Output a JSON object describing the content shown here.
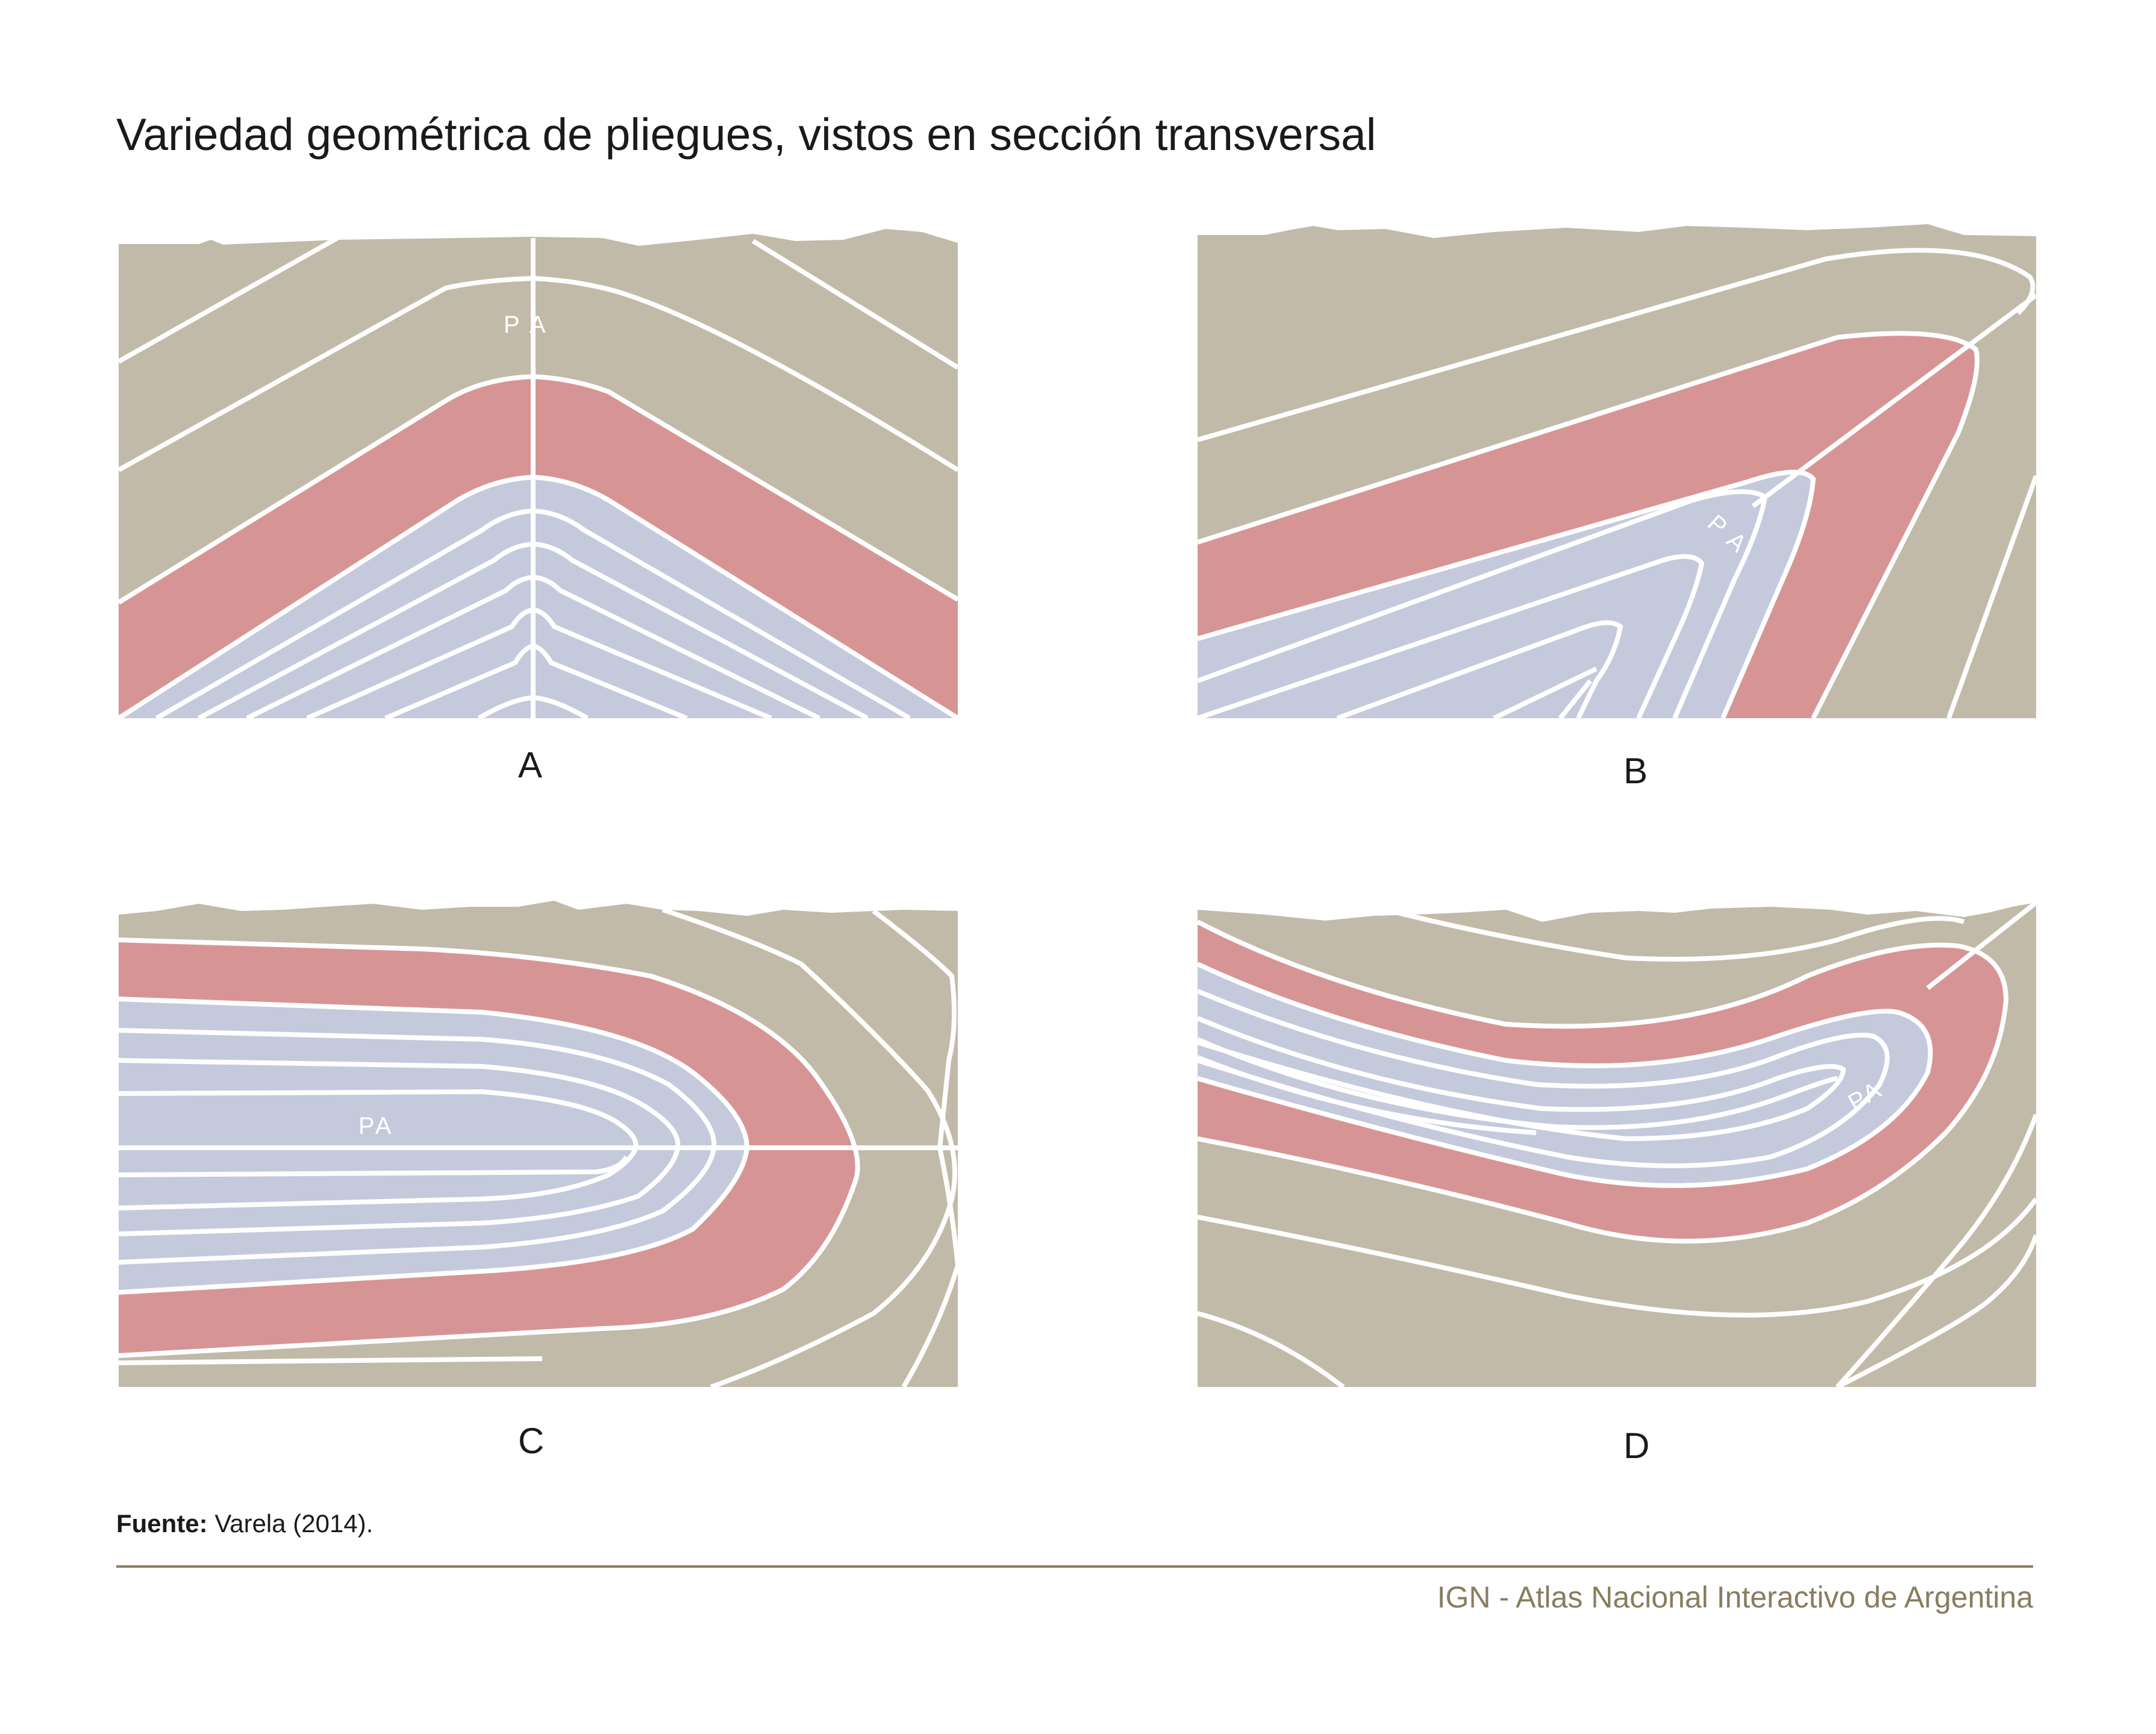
{
  "title": "Variedad geométrica de pliegues, vistos en sección transversal",
  "panels": [
    {
      "label": "A",
      "axis_label": "P A"
    },
    {
      "label": "B",
      "axis_label": "P A"
    },
    {
      "label": "C",
      "axis_label": "PA"
    },
    {
      "label": "D",
      "axis_label": "PA"
    }
  ],
  "source": {
    "prefix": "Fuente:",
    "text": " Varela (2014)."
  },
  "credit": "IGN - Atlas Nacional Interactivo de Argentina",
  "colors": {
    "outer_layers": "#c1baa8",
    "key_layer": "#d69594",
    "core_layers": "#c5c9dc",
    "lines": "#ffffff",
    "accent": "#8a7c5e"
  }
}
